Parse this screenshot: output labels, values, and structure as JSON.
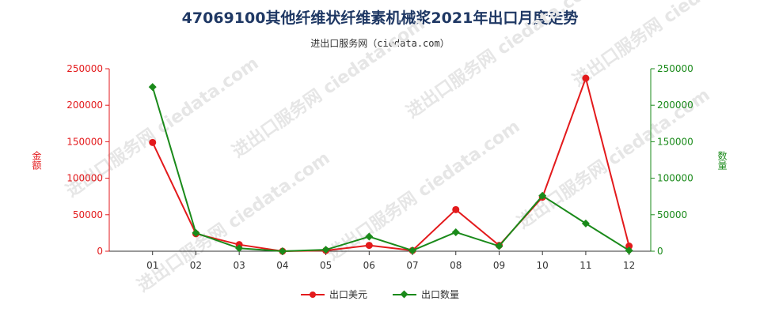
{
  "chart_data": {
    "type": "line",
    "title": "47069100其他纤维状纤维素机械浆2021年出口月度走势",
    "subtitle": "进出口服务网（ciedata.com）",
    "watermark": "进出口服务网 ciedata.com",
    "categories": [
      "01",
      "02",
      "03",
      "04",
      "05",
      "06",
      "07",
      "08",
      "09",
      "10",
      "11",
      "12"
    ],
    "y_left": {
      "label": "金额",
      "ylim": [
        0,
        250000
      ],
      "ticks": [
        "0",
        "50000",
        "100000",
        "150000",
        "200000",
        "250000"
      ],
      "color": "#e31a1c"
    },
    "y_right": {
      "label": "数量",
      "ylim": [
        0,
        250000
      ],
      "ticks": [
        "0",
        "50000",
        "100000",
        "150000",
        "200000",
        "250000"
      ],
      "color": "#1a8a1a"
    },
    "series": [
      {
        "name": "出口美元",
        "axis": "left",
        "color": "#e31a1c",
        "marker": "circle",
        "values": [
          149000,
          24000,
          9000,
          0,
          1000,
          8000,
          1000,
          57000,
          8000,
          74000,
          237000,
          7000
        ]
      },
      {
        "name": "出口数量",
        "axis": "right",
        "color": "#1a8a1a",
        "marker": "diamond",
        "values": [
          225000,
          25000,
          4000,
          0,
          2000,
          20000,
          1000,
          26000,
          7000,
          76000,
          38000,
          1000
        ]
      }
    ],
    "legend": "bottom-center",
    "grid": false
  }
}
